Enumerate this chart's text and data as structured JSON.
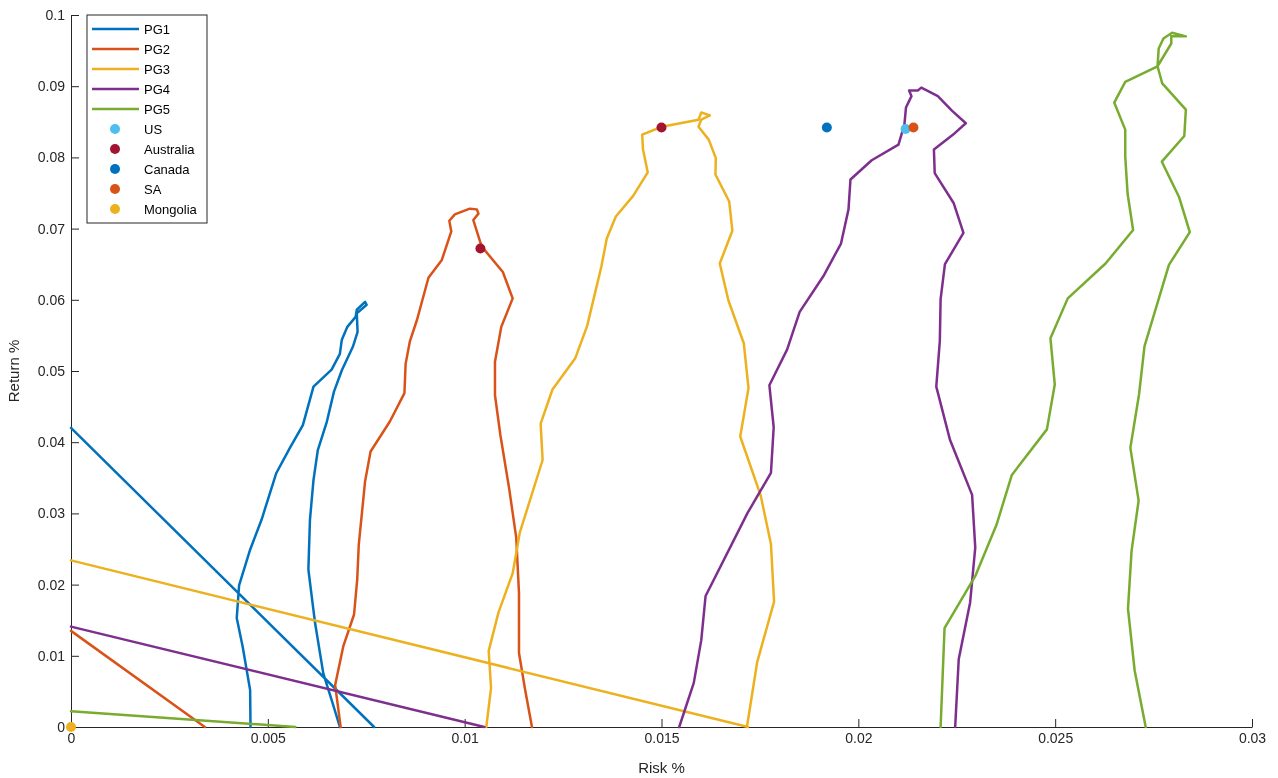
{
  "chart_data": {
    "type": "line",
    "xlabel": "Risk %",
    "ylabel": "Return %",
    "xlim": [
      0,
      0.03
    ],
    "ylim": [
      0,
      0.1
    ],
    "xticks": [
      0,
      0.005,
      0.01,
      0.015,
      0.02,
      0.025,
      0.03
    ],
    "yticks": [
      0,
      0.01,
      0.02,
      0.03,
      0.04,
      0.05,
      0.06,
      0.07,
      0.08,
      0.09,
      0.1
    ],
    "legend": "top left",
    "grid": false,
    "series": [
      {
        "name": "PG1",
        "color": "#0072bd",
        "x": [
          0.00456,
          0.00455,
          0.00436,
          0.00421,
          0.00427,
          0.00455,
          0.00484,
          0.00521,
          0.00555,
          0.00589,
          0.00616,
          0.00662,
          0.00683,
          0.00688,
          0.00702,
          0.00723,
          0.00726,
          0.00747,
          0.00751,
          0.00726,
          0.00728,
          0.00716,
          0.00688,
          0.00668,
          0.0065,
          0.00627,
          0.00616,
          0.00607,
          0.00603,
          0.0062,
          0.00641,
          0.00662,
          0.00683,
          null,
          0,
          0.0077
        ],
        "values": [
          0,
          0.0052,
          0.0113,
          0.0153,
          0.0199,
          0.0249,
          0.0291,
          0.0356,
          0.0391,
          0.0424,
          0.0478,
          0.0502,
          0.0524,
          0.0544,
          0.0562,
          0.0576,
          0.0586,
          0.0597,
          0.0593,
          0.0581,
          0.0555,
          0.0534,
          0.0501,
          0.0471,
          0.0429,
          0.0389,
          0.0347,
          0.0291,
          0.0221,
          0.0146,
          0.0075,
          0.0038,
          0,
          null,
          0.042,
          0
        ]
      },
      {
        "name": "PG2",
        "color": "#d95319",
        "x": [
          0.00685,
          0.00671,
          0.00692,
          0.00719,
          0.00727,
          0.00731,
          0.00747,
          0.00761,
          0.0081,
          0.00847,
          0.0085,
          0.00861,
          0.00879,
          0.00908,
          0.00942,
          0.00966,
          0.00961,
          0.00975,
          0.01013,
          0.01031,
          0.01035,
          0.01022,
          0.01043,
          0.01097,
          0.01122,
          0.01093,
          0.01077,
          0.01077,
          0.01091,
          0.01113,
          0.01131,
          0.01138,
          0.01138,
          0.01153,
          0.01171,
          null,
          0,
          0.0034
        ],
        "values": [
          0,
          0.0059,
          0.0114,
          0.0158,
          0.0207,
          0.0256,
          0.0345,
          0.0387,
          0.0429,
          0.0469,
          0.051,
          0.0542,
          0.0572,
          0.0631,
          0.0656,
          0.0696,
          0.0711,
          0.072,
          0.0728,
          0.0727,
          0.0721,
          0.0712,
          0.0675,
          0.0639,
          0.0602,
          0.0562,
          0.0513,
          0.0466,
          0.0409,
          0.0335,
          0.0266,
          0.0188,
          0.0104,
          0.0054,
          0,
          null,
          0.0135,
          0
        ]
      },
      {
        "name": "PG3",
        "color": "#edb120",
        "x": [
          0.01055,
          0.01067,
          0.01061,
          0.01086,
          0.01122,
          0.0114,
          0.01198,
          0.01193,
          0.01223,
          0.01281,
          0.01311,
          0.01347,
          0.01361,
          0.01384,
          0.01428,
          0.01465,
          0.01453,
          0.01451,
          0.01501,
          0.01594,
          0.01601,
          0.01623,
          0.01601,
          0.01594,
          0.0162,
          0.01638,
          0.01637,
          0.01672,
          0.0168,
          0.01648,
          0.0167,
          0.01709,
          0.01721,
          0.017,
          0.01752,
          0.01778,
          0.01786,
          0.01743,
          0.01717,
          null,
          0,
          0.0172
        ],
        "values": [
          0,
          0.0055,
          0.0107,
          0.0161,
          0.0216,
          0.0273,
          0.0375,
          0.0426,
          0.0474,
          0.0518,
          0.0563,
          0.0646,
          0.0686,
          0.0717,
          0.0746,
          0.0779,
          0.0811,
          0.0832,
          0.0843,
          0.0853,
          0.0863,
          0.0859,
          0.0853,
          0.0843,
          0.0825,
          0.0799,
          0.0776,
          0.0738,
          0.0697,
          0.0651,
          0.0599,
          0.0539,
          0.0476,
          0.0408,
          0.0325,
          0.0257,
          0.0176,
          0.0091,
          0,
          null,
          0.0234,
          0
        ]
      },
      {
        "name": "PG4",
        "color": "#7e2f8e",
        "x": [
          0.01545,
          0.01582,
          0.01601,
          0.01612,
          0.01719,
          0.01778,
          0.01785,
          0.01774,
          0.01819,
          0.01851,
          0.01911,
          0.01956,
          0.01975,
          0.0198,
          0.02034,
          0.02102,
          0.02117,
          0.02121,
          0.02135,
          0.02129,
          0.02151,
          0.0216,
          0.02202,
          0.02237,
          0.02273,
          0.02245,
          0.02192,
          0.02194,
          0.02242,
          0.02267,
          0.0222,
          0.02209,
          0.02207,
          0.02198,
          0.02233,
          0.02289,
          0.02297,
          0.02284,
          0.02255,
          0.02246,
          null,
          0,
          0.0105
        ],
        "values": [
          0,
          0.0062,
          0.0122,
          0.0184,
          0.0301,
          0.0357,
          0.0421,
          0.048,
          0.053,
          0.0583,
          0.0633,
          0.0679,
          0.0727,
          0.0769,
          0.0796,
          0.0818,
          0.0846,
          0.087,
          0.0886,
          0.0894,
          0.0894,
          0.0898,
          0.0886,
          0.0866,
          0.0848,
          0.0834,
          0.0811,
          0.0778,
          0.0736,
          0.0694,
          0.065,
          0.0601,
          0.0542,
          0.0478,
          0.0403,
          0.0326,
          0.0252,
          0.0175,
          0.0095,
          0,
          null,
          0.0141,
          0
        ]
      },
      {
        "name": "PG5",
        "color": "#77ac30",
        "x": [
          0.02209,
          0.02219,
          0.02298,
          0.02351,
          0.0239,
          0.02479,
          0.02499,
          0.02488,
          0.02532,
          0.02628,
          0.02698,
          0.02684,
          0.02678,
          0.02678,
          0.0265,
          0.02678,
          0.0276,
          0.02763,
          0.02775,
          0.02797,
          0.02832,
          0.02795,
          0.02795,
          0.0276,
          0.02772,
          0.02832,
          0.02828,
          0.02771,
          0.02815,
          0.02842,
          0.02789,
          0.02727,
          0.02713,
          0.02691,
          0.02712,
          0.02694,
          0.02685,
          0.02702,
          0.0273,
          null,
          0,
          0.0057
        ],
        "values": [
          0,
          0.0139,
          0.0213,
          0.0284,
          0.0354,
          0.0418,
          0.0481,
          0.0546,
          0.0602,
          0.0651,
          0.0698,
          0.0749,
          0.0801,
          0.0839,
          0.0877,
          0.0906,
          0.0928,
          0.0953,
          0.0967,
          0.0975,
          0.097,
          0.097,
          0.096,
          0.0928,
          0.0904,
          0.0867,
          0.083,
          0.0794,
          0.0744,
          0.0695,
          0.0649,
          0.0535,
          0.0467,
          0.0392,
          0.0318,
          0.0247,
          0.0166,
          0.0079,
          0,
          null,
          0.0022,
          0
        ]
      },
      {
        "name": "US",
        "type": "scatter",
        "color": "#4dbeee",
        "x": [
          0.0212
        ],
        "values": [
          0.084
        ]
      },
      {
        "name": "Australia",
        "type": "scatter",
        "color": "#a2142f",
        "x": [
          0.0104,
          0.015
        ],
        "values": [
          0.0672,
          0.0842
        ]
      },
      {
        "name": "Canada",
        "type": "scatter",
        "color": "#0072bd",
        "x": [
          0.0192
        ],
        "values": [
          0.0842
        ]
      },
      {
        "name": "SA",
        "type": "scatter",
        "color": "#d95319",
        "x": [
          0.0214
        ],
        "values": [
          0.0842
        ]
      },
      {
        "name": "Mongolia",
        "type": "scatter",
        "color": "#edb120",
        "x": [
          0
        ],
        "values": [
          0
        ]
      }
    ]
  }
}
